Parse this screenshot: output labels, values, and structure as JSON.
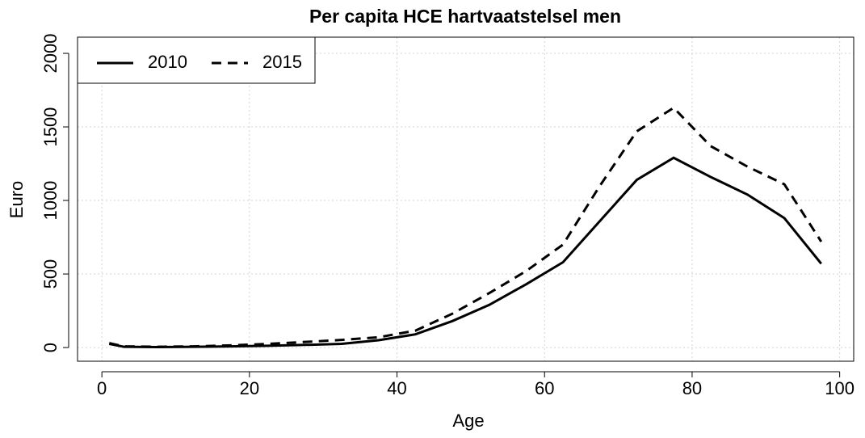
{
  "chart_data": {
    "type": "line",
    "title": "Per capita HCE hartvaatstelsel men",
    "x_label": "Age",
    "y_label": "Euro",
    "x": [
      1,
      3,
      7.5,
      12.5,
      17.5,
      22.5,
      27.5,
      32.5,
      37.5,
      42.5,
      47.5,
      52.5,
      57.5,
      62.5,
      67.5,
      72.5,
      77.5,
      82.5,
      87.5,
      92.5,
      97.5
    ],
    "series": [
      {
        "name": "2010",
        "color": "#000000",
        "linestyle": "solid",
        "values": [
          25,
          5,
          3,
          5,
          8,
          12,
          18,
          25,
          50,
          90,
          180,
          290,
          430,
          580,
          860,
          1140,
          1290,
          1160,
          1040,
          880,
          570
        ]
      },
      {
        "name": "2015",
        "color": "#000000",
        "linestyle": "dashed",
        "values": [
          30,
          8,
          5,
          8,
          15,
          25,
          38,
          52,
          70,
          115,
          230,
          370,
          520,
          700,
          1100,
          1470,
          1630,
          1370,
          1230,
          1110,
          720
        ]
      }
    ],
    "xlim": [
      -3.3,
      101.9
    ],
    "ylim": [
      -93,
      2110
    ],
    "xticks": [
      0,
      20,
      40,
      60,
      80,
      100
    ],
    "yticks": [
      0,
      500,
      1000,
      1500,
      2000
    ],
    "grid": true,
    "legend": "top-left"
  }
}
